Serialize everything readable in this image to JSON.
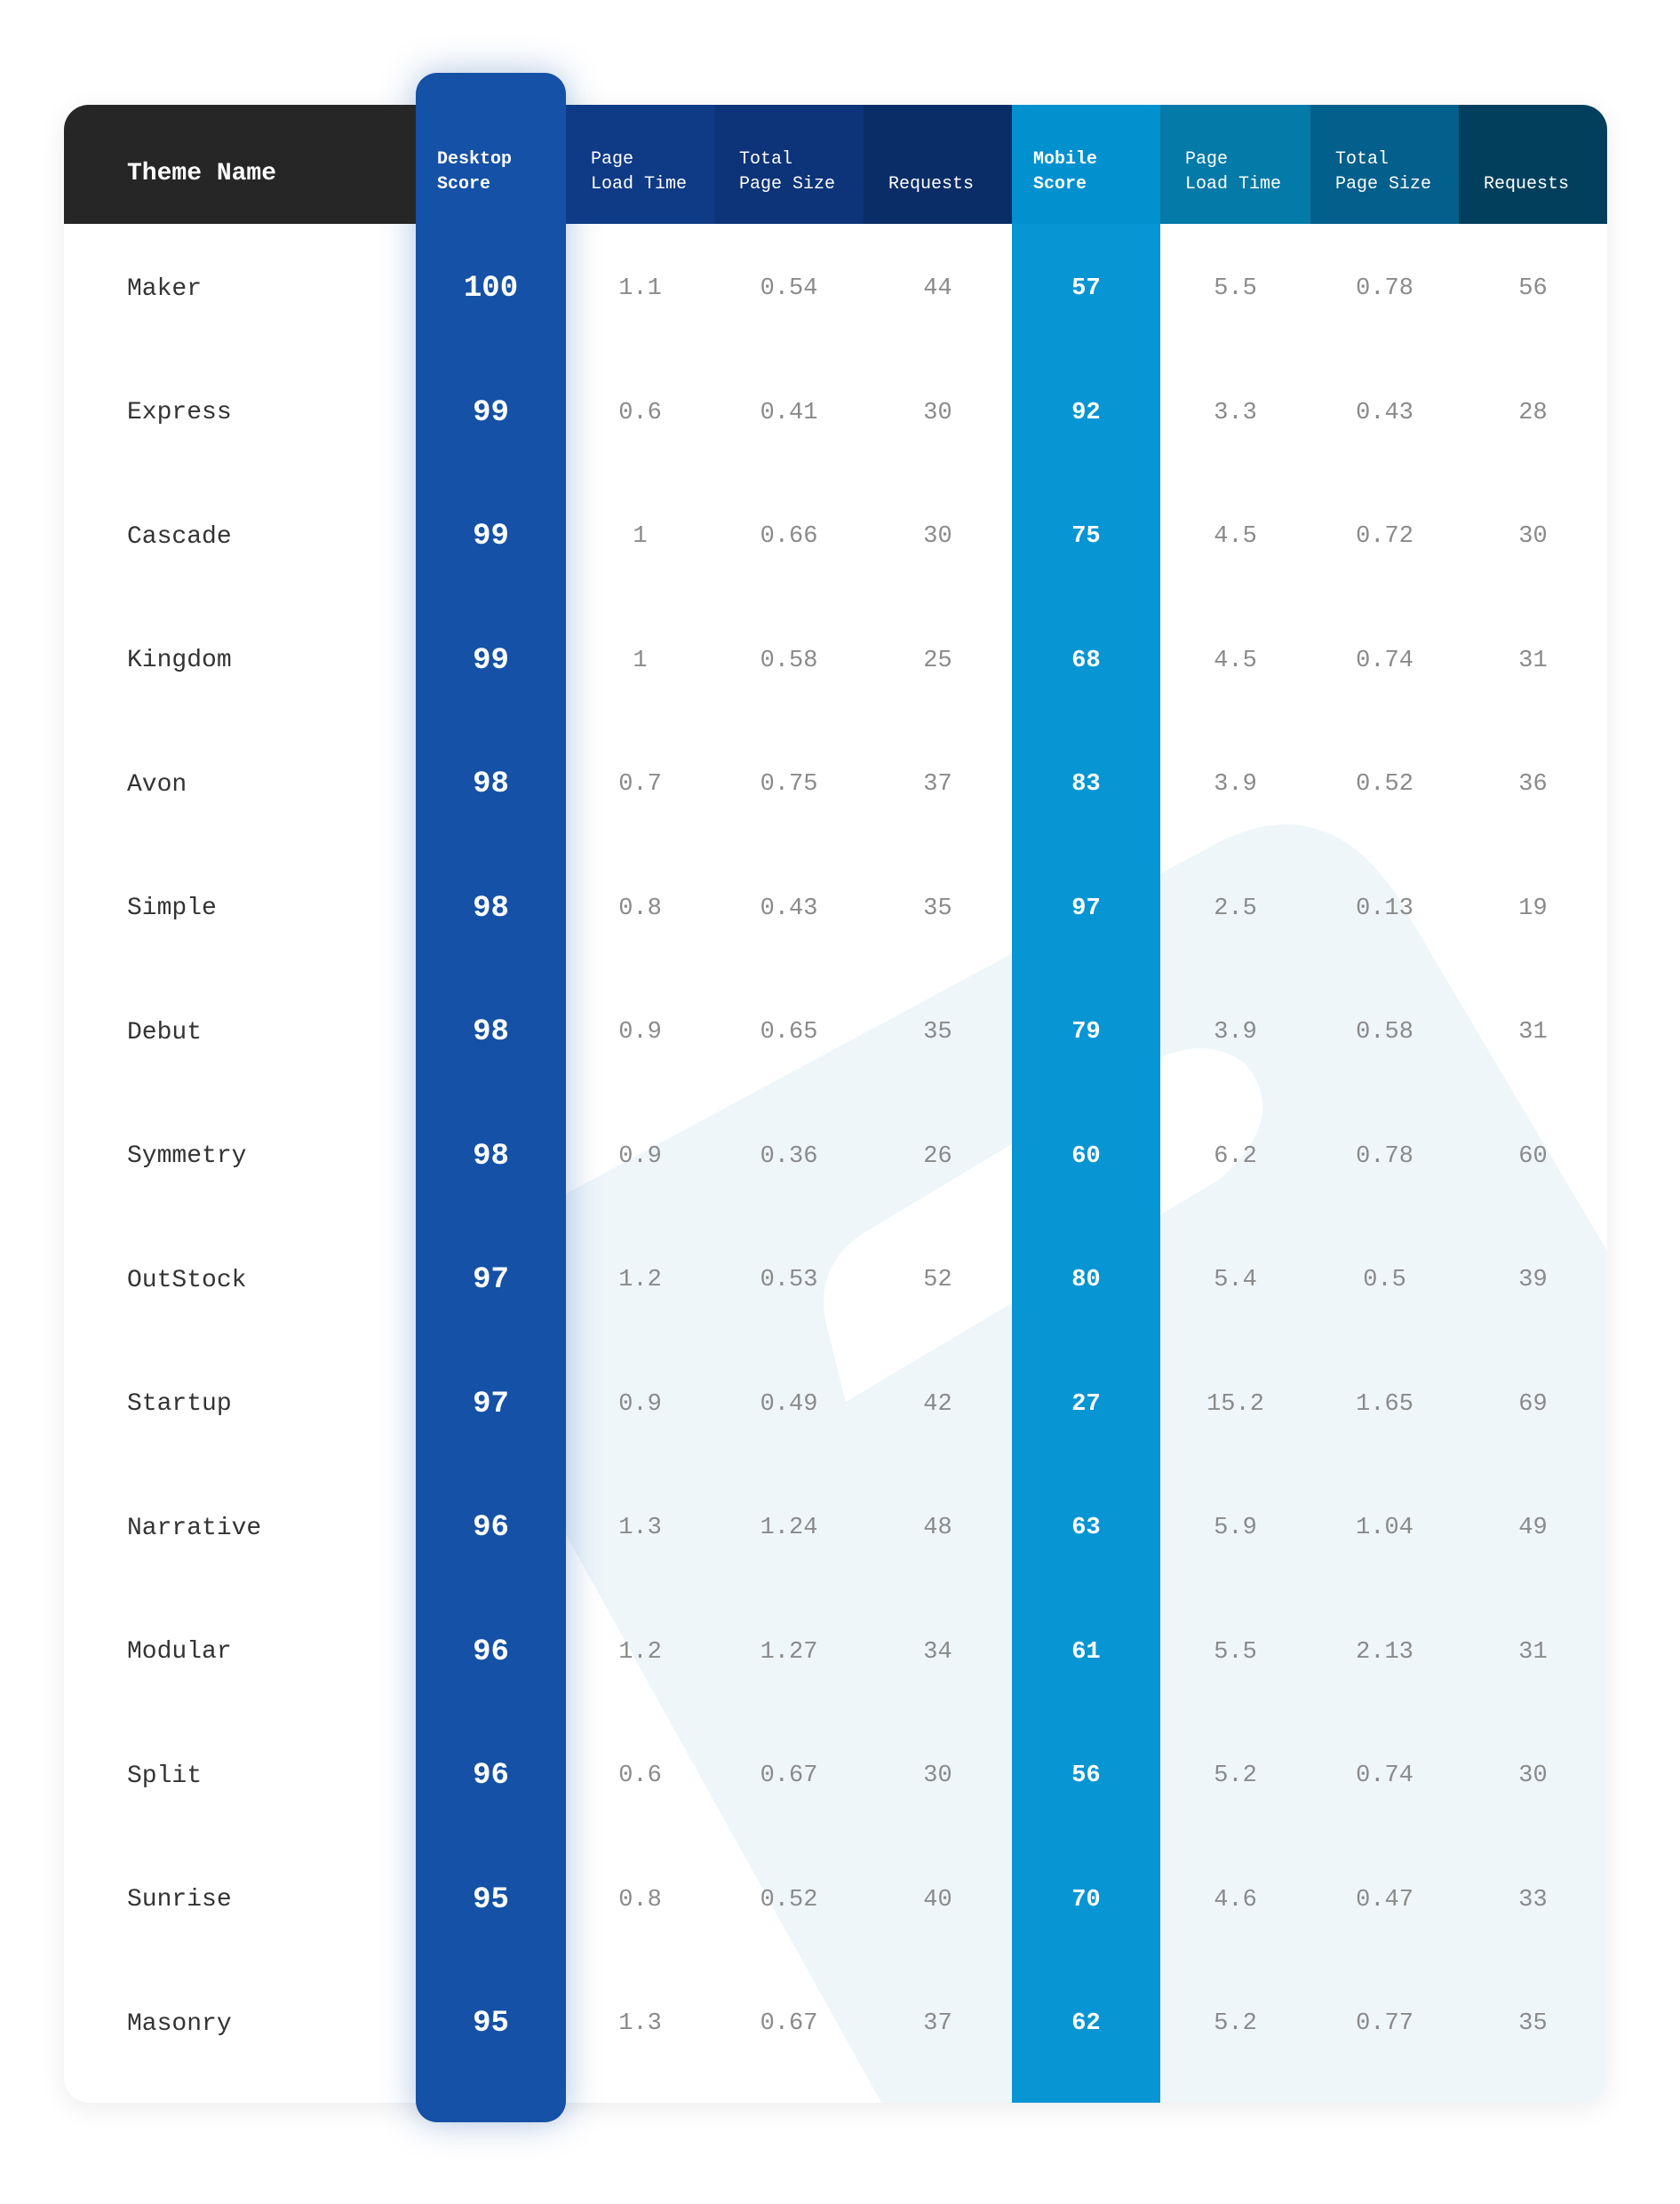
{
  "table": {
    "headers": [
      "Theme Name",
      "Desktop\nScore",
      "Page\nLoad Time",
      "Total\nPage Size",
      "Requests",
      "Mobile\nScore",
      "Page\nLoad Time",
      "Total\nPage Size",
      "Requests"
    ],
    "rows": [
      [
        "Maker",
        100,
        1.1,
        0.54,
        44,
        57,
        5.5,
        0.78,
        56
      ],
      [
        "Express",
        99,
        0.6,
        0.41,
        30,
        92,
        3.3,
        0.43,
        28
      ],
      [
        "Cascade",
        99,
        1,
        0.66,
        30,
        75,
        4.5,
        0.72,
        30
      ],
      [
        "Kingdom",
        99,
        1,
        0.58,
        25,
        68,
        4.5,
        0.74,
        31
      ],
      [
        "Avon",
        98,
        0.7,
        0.75,
        37,
        83,
        3.9,
        0.52,
        36
      ],
      [
        "Simple",
        98,
        0.8,
        0.43,
        35,
        97,
        2.5,
        0.13,
        19
      ],
      [
        "Debut",
        98,
        0.9,
        0.65,
        35,
        79,
        3.9,
        0.58,
        31
      ],
      [
        "Symmetry",
        98,
        0.9,
        0.36,
        26,
        60,
        6.2,
        0.78,
        60
      ],
      [
        "OutStock",
        97,
        1.2,
        0.53,
        52,
        80,
        5.4,
        0.5,
        39
      ],
      [
        "Startup",
        97,
        0.9,
        0.49,
        42,
        27,
        15.2,
        1.65,
        69
      ],
      [
        "Narrative",
        96,
        1.3,
        1.24,
        48,
        63,
        5.9,
        1.04,
        49
      ],
      [
        "Modular",
        96,
        1.2,
        1.27,
        34,
        61,
        5.5,
        2.13,
        31
      ],
      [
        "Split",
        96,
        0.6,
        0.67,
        30,
        56,
        5.2,
        0.74,
        30
      ],
      [
        "Sunrise",
        95,
        0.8,
        0.52,
        40,
        70,
        4.6,
        0.47,
        33
      ],
      [
        "Masonry",
        95,
        1.3,
        0.67,
        37,
        62,
        5.2,
        0.77,
        35
      ]
    ]
  }
}
